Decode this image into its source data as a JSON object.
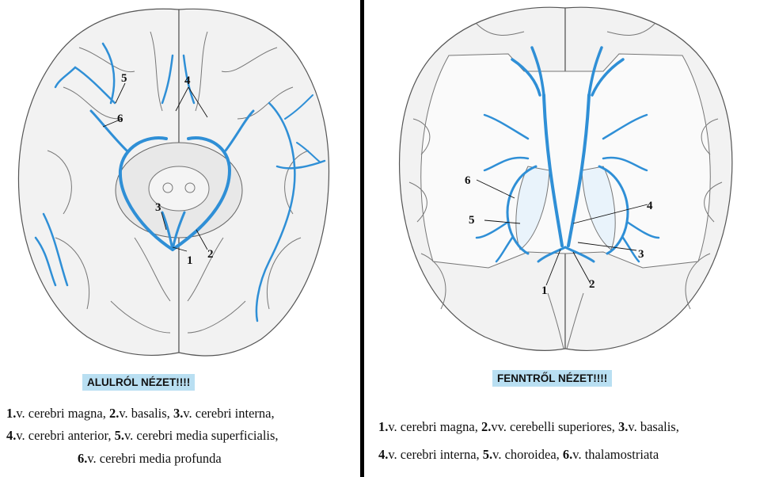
{
  "left_panel": {
    "title": "ALULRÓL NÉZET!!!!",
    "labels": [
      "1",
      "2",
      "3",
      "4",
      "5",
      "6"
    ],
    "legend": {
      "line1": [
        {
          "num": "1.",
          "text": "v. cerebri magna, "
        },
        {
          "num": "2.",
          "text": "v. basalis, "
        },
        {
          "num": "3.",
          "text": "v. cerebri interna,"
        }
      ],
      "line2": [
        {
          "num": "4.",
          "text": "v. cerebri anterior, "
        },
        {
          "num": "5.",
          "text": "v. cerebri media superficialis,"
        }
      ],
      "line3": [
        {
          "num": "6.",
          "text": "v. cerebri media profunda"
        }
      ]
    }
  },
  "right_panel": {
    "title": "FENNTRŐL NÉZET!!!!",
    "labels": [
      "1",
      "2",
      "3",
      "4",
      "5",
      "6"
    ],
    "legend": {
      "line1": [
        {
          "num": "1.",
          "text": "v. cerebri magna, "
        },
        {
          "num": "2.",
          "text": "vv. cerebelli superiores, "
        },
        {
          "num": "3.",
          "text": "v. basalis,"
        }
      ],
      "line2": [
        {
          "num": "4.",
          "text": "v. cerebri interna, "
        },
        {
          "num": "5.",
          "text": "v. choroidea, "
        },
        {
          "num": "6.",
          "text": "v. thalamostriata"
        }
      ]
    }
  },
  "colors": {
    "vein": "#2f8fd6",
    "title_bg": "#b9dff2",
    "divider": "#000000"
  }
}
